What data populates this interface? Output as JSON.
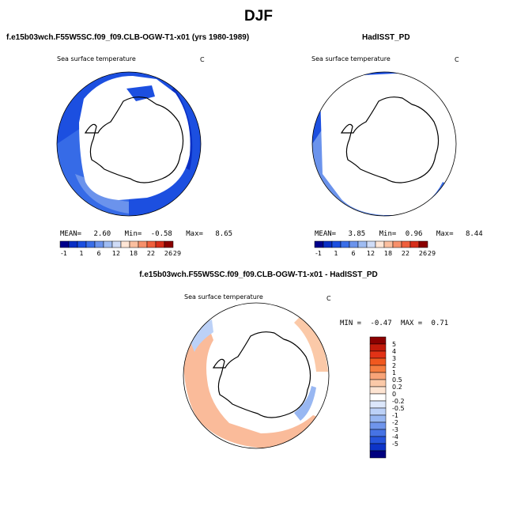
{
  "season": "DJF",
  "colors": {
    "land": "#ffffff",
    "outline": "#000000",
    "abs_scale": [
      "#00008b",
      "#0a2fc4",
      "#1c4fe0",
      "#3a6ee8",
      "#6b93ec",
      "#9fbcf2",
      "#cfdcf7",
      "#ffe6d6",
      "#fbbf9f",
      "#f7906b",
      "#ef5f3c",
      "#d62e1a",
      "#8b0000"
    ],
    "diff_scale": [
      "#8b0000",
      "#c21a0a",
      "#e23216",
      "#f0581f",
      "#f57d40",
      "#f8a478",
      "#fbc9a8",
      "#fde4d2",
      "#ffffff",
      "#dce7fb",
      "#bcd1f7",
      "#98b7f2",
      "#6f95ec",
      "#4673e4",
      "#2654dc",
      "#0d34c8",
      "#00007f"
    ]
  },
  "panels": {
    "left": {
      "title": "f.e15b03wch.F55W5SC.f09_f09.CLB-OGW-T1-x01 (yrs 1980-1989)",
      "variable": "Sea surface temperature",
      "units": "C",
      "stats": {
        "mean_label": "MEAN=",
        "mean": "2.60",
        "min_label": "Min=",
        "min": "-0.58",
        "max_label": "Max=",
        "max": "8.65"
      },
      "colorbar_labels": [
        "-1",
        "1",
        "6",
        "12",
        "18",
        "22",
        "26",
        "29"
      ]
    },
    "right": {
      "title": "HadISST_PD",
      "variable": "Sea surface temperature",
      "units": "C",
      "stats": {
        "mean_label": "MEAN=",
        "mean": "3.85",
        "min_label": "Min=",
        "min": "0.96",
        "max_label": "Max=",
        "max": "8.44"
      },
      "colorbar_labels": [
        "-1",
        "1",
        "6",
        "12",
        "18",
        "22",
        "26",
        "29"
      ]
    },
    "diff": {
      "title": "f.e15b03wch.F55W5SC.f09_f09.CLB-OGW-T1-x01 - HadISST_PD",
      "variable": "Sea surface temperature",
      "units": "C",
      "stats": {
        "min_label": "MIN =",
        "min": "-0.47",
        "max_label": "MAX =",
        "max": "0.71"
      },
      "colorbar_labels": [
        "5",
        "4",
        "3",
        "2",
        "1",
        "0.5",
        "0.2",
        "0",
        "-0.2",
        "-0.5",
        "-1",
        "-2",
        "-3",
        "-4",
        "-5"
      ]
    }
  }
}
